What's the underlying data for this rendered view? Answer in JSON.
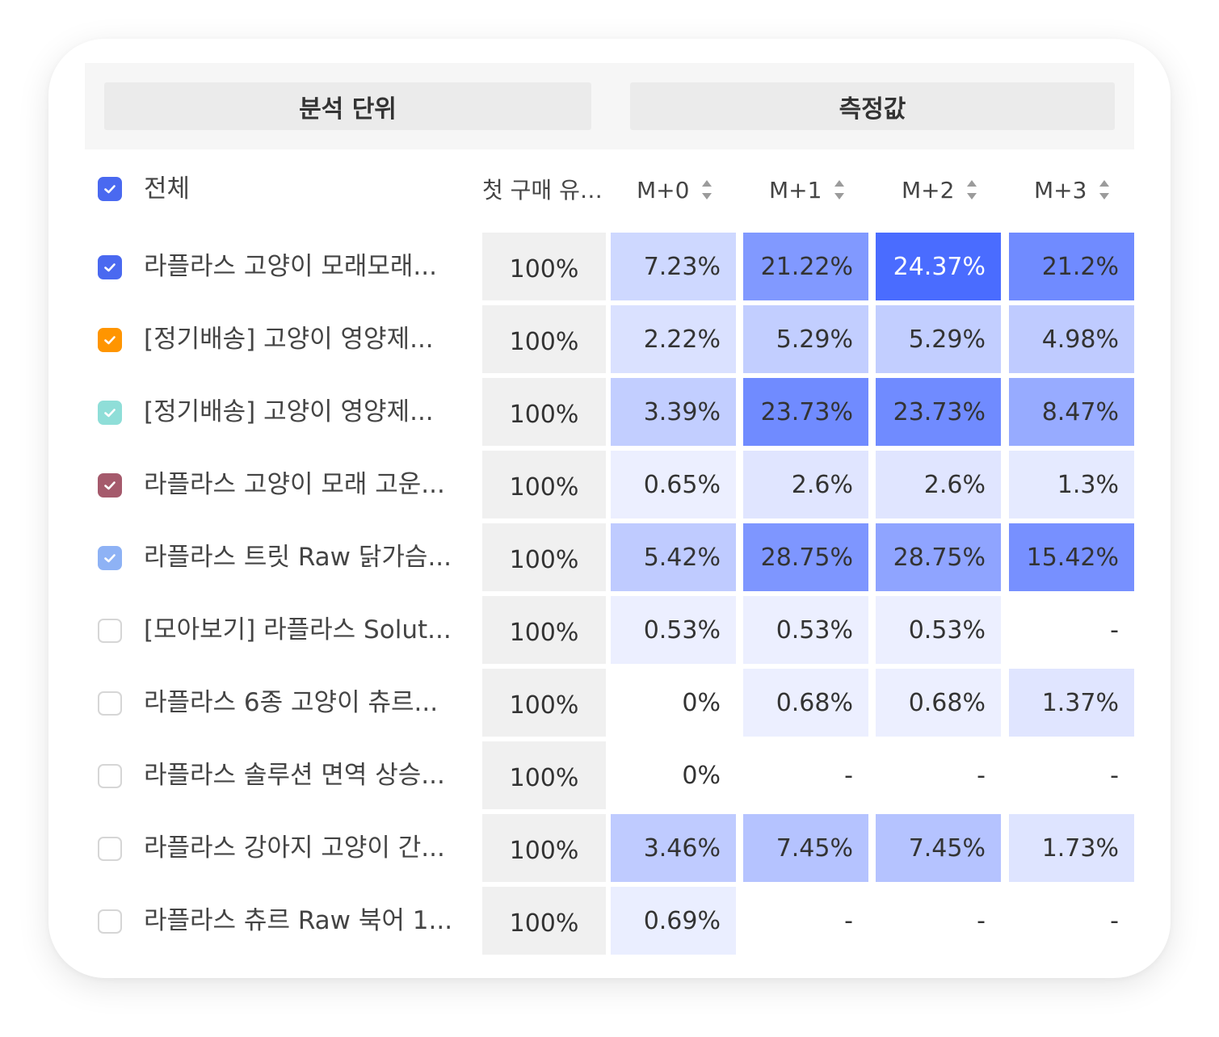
{
  "header": {
    "left_group": "분석 단위",
    "right_group": "측정값"
  },
  "select_all": {
    "label": "전체",
    "checked": true,
    "color": "#4a69f0"
  },
  "columns": [
    "첫 구매 유…",
    "M+0",
    "M+1",
    "M+2",
    "M+3"
  ],
  "colors": {
    "heat_base": "#4a6cff",
    "first_col_bg": "#f0f0f0"
  },
  "rows": [
    {
      "label": "라플라스 고양이 모래모래...",
      "checked": true,
      "color": "#4a69f0",
      "first": "100%",
      "values": [
        "7.23%",
        "21.22%",
        "24.37%",
        "21.2%"
      ],
      "levels": [
        0.23,
        0.68,
        1.0,
        0.78
      ]
    },
    {
      "label": "[정기배송] 고양이 영양제...",
      "checked": true,
      "color": "#ff9500",
      "first": "100%",
      "values": [
        "2.22%",
        "5.29%",
        "5.29%",
        "4.98%"
      ],
      "levels": [
        0.16,
        0.3,
        0.3,
        0.32
      ]
    },
    {
      "label": "[정기배송] 고양이 영양제...",
      "checked": true,
      "color": "#8fded8",
      "first": "100%",
      "values": [
        "3.39%",
        "23.73%",
        "23.73%",
        "8.47%"
      ],
      "levels": [
        0.3,
        0.78,
        0.78,
        0.55
      ]
    },
    {
      "label": "라플라스 고양이 모래 고운...",
      "checked": true,
      "color": "#a55a6c",
      "first": "100%",
      "values": [
        "0.65%",
        "2.6%",
        "2.6%",
        "1.3%"
      ],
      "levels": [
        0.06,
        0.13,
        0.13,
        0.1
      ]
    },
    {
      "label": "라플라스 트릿 Raw 닭가슴...",
      "checked": true,
      "color": "#8eb2f5",
      "first": "100%",
      "values": [
        "5.42%",
        "28.75%",
        "28.75%",
        "15.42%"
      ],
      "levels": [
        0.32,
        0.7,
        0.6,
        0.74
      ]
    },
    {
      "label": "[모아보기] 라플라스 Solut...",
      "checked": false,
      "color": "#d6d6d6",
      "first": "100%",
      "values": [
        "0.53%",
        "0.53%",
        "0.53%",
        "-"
      ],
      "levels": [
        0.06,
        0.06,
        0.06,
        0
      ]
    },
    {
      "label": "라플라스 6종 고양이 츄르...",
      "checked": false,
      "color": "#d6d6d6",
      "first": "100%",
      "values": [
        "0%",
        "0.68%",
        "0.68%",
        "1.37%"
      ],
      "levels": [
        0,
        0.06,
        0.06,
        0.13
      ]
    },
    {
      "label": "라플라스 솔루션 면역 상승...",
      "checked": false,
      "color": "#d6d6d6",
      "first": "100%",
      "values": [
        "0%",
        "-",
        "-",
        "-"
      ],
      "levels": [
        0,
        0,
        0,
        0
      ]
    },
    {
      "label": "라플라스 강아지 고양이 간...",
      "checked": false,
      "color": "#d6d6d6",
      "first": "100%",
      "values": [
        "3.46%",
        "7.45%",
        "7.45%",
        "1.73%"
      ],
      "levels": [
        0.32,
        0.38,
        0.38,
        0.14
      ]
    },
    {
      "label": "라플라스 츄르 Raw 북어 1...",
      "checked": false,
      "color": "#d6d6d6",
      "first": "100%",
      "values": [
        "0.69%",
        "-",
        "-",
        "-"
      ],
      "levels": [
        0.07,
        0,
        0,
        0
      ]
    }
  ]
}
